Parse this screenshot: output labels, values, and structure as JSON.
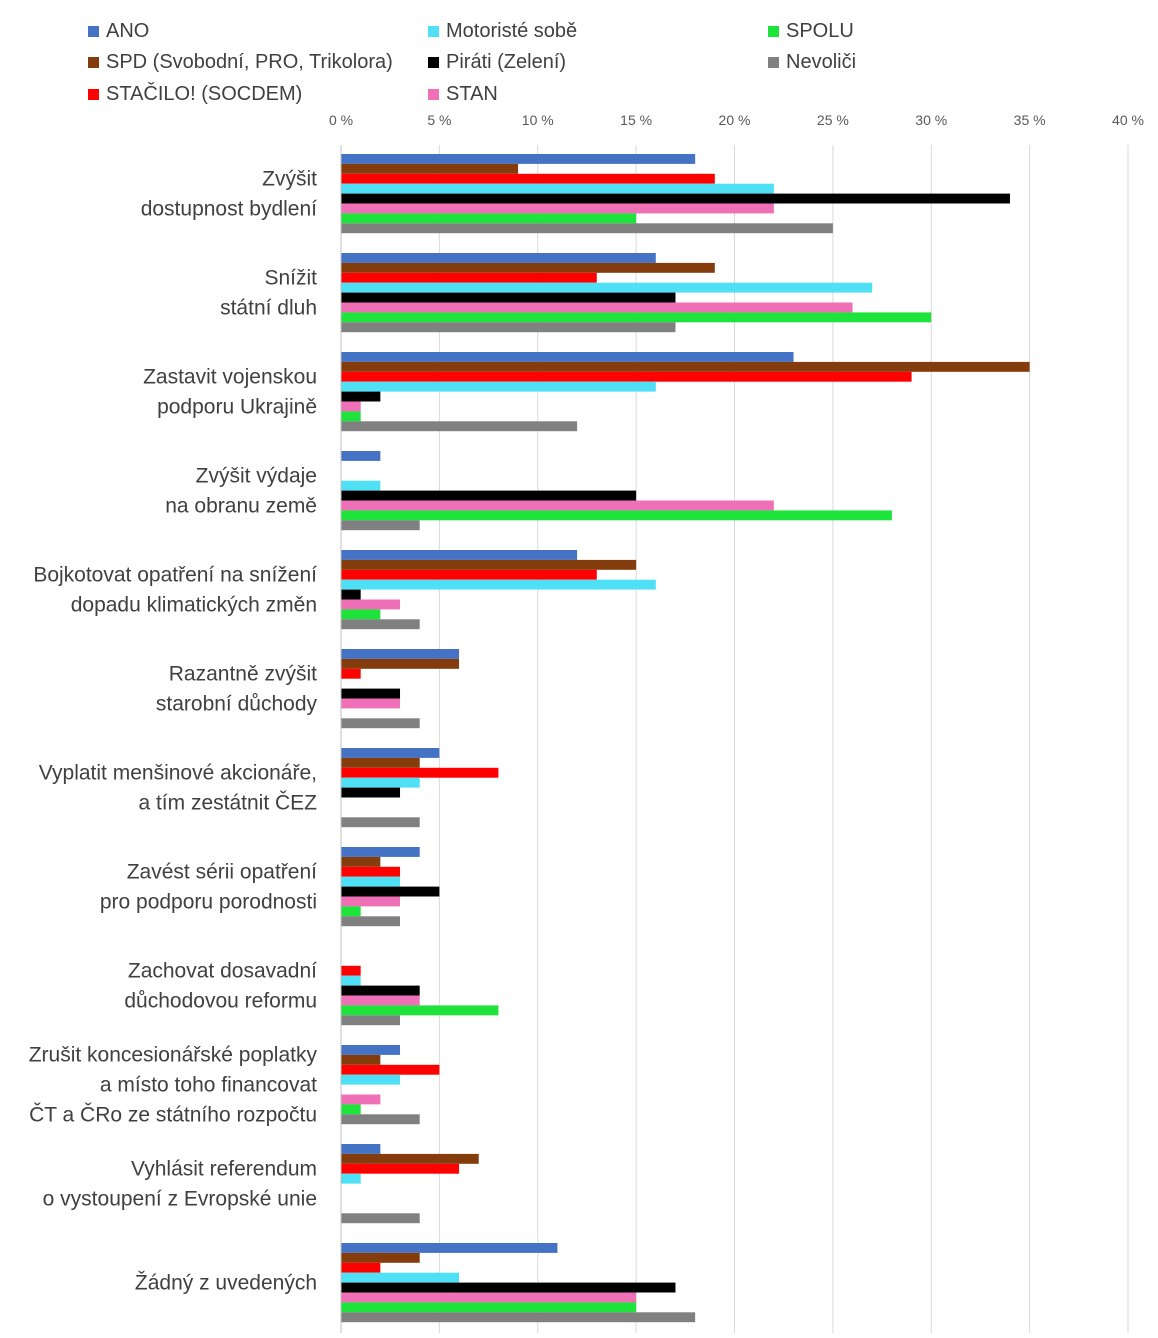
{
  "chart_data": {
    "type": "bar",
    "orientation": "horizontal",
    "title": "",
    "xlabel": "",
    "ylabel": "",
    "xlim": [
      0,
      40
    ],
    "tick_values": [
      0,
      5,
      10,
      15,
      20,
      25,
      30,
      35,
      40
    ],
    "tick_labels": [
      "0 %",
      "5 %",
      "10 %",
      "15 %",
      "20 %",
      "25 %",
      "30 %",
      "35 %",
      "40 %"
    ],
    "grid": true,
    "legend_position": "top",
    "categories": [
      {
        "lines": [
          "Zvýšit",
          "dostupnost bydlení"
        ]
      },
      {
        "lines": [
          "Snížit",
          "státní dluh"
        ]
      },
      {
        "lines": [
          "Zastavit vojenskou",
          "podporu Ukrajině"
        ]
      },
      {
        "lines": [
          "Zvýšit výdaje",
          "na obranu země"
        ]
      },
      {
        "lines": [
          "Bojkotovat opatření na snížení",
          "dopadu klimatických změn"
        ]
      },
      {
        "lines": [
          "Razantně zvýšit",
          "starobní důchody"
        ]
      },
      {
        "lines": [
          "Vyplatit menšinové akcionáře,",
          "a tím zestátnit ČEZ"
        ]
      },
      {
        "lines": [
          "Zavést sérii opatření",
          "pro podporu porodnosti"
        ]
      },
      {
        "lines": [
          "Zachovat dosavadní",
          "důchodovou reformu"
        ]
      },
      {
        "lines": [
          "Zrušit koncesionářské poplatky",
          "a místo toho financovat",
          "ČT a ČRo ze státního rozpočtu"
        ]
      },
      {
        "lines": [
          "Vyhlásit referendum",
          "o vystoupení z Evropské unie"
        ]
      },
      {
        "lines": [
          "Žádný z uvedených"
        ]
      }
    ],
    "series": [
      {
        "name": "ANO",
        "color": "#4472C4",
        "values": [
          18,
          16,
          23,
          2,
          12,
          6,
          5,
          4,
          0,
          3,
          2,
          11
        ]
      },
      {
        "name": "SPD (Svobodní, PRO, Trikolora)",
        "color": "#843C0C",
        "values": [
          9,
          19,
          35,
          0,
          15,
          6,
          4,
          2,
          0,
          2,
          7,
          4
        ]
      },
      {
        "name": "STAČILO! (SOCDEM)",
        "color": "#FF0000",
        "values": [
          19,
          13,
          29,
          0,
          13,
          1,
          8,
          3,
          1,
          5,
          6,
          2
        ]
      },
      {
        "name": "Motoristé sobě",
        "color": "#4FE0F5",
        "values": [
          22,
          27,
          16,
          2,
          16,
          0,
          4,
          3,
          1,
          3,
          1,
          6
        ]
      },
      {
        "name": "Piráti (Zelení)",
        "color": "#000000",
        "values": [
          34,
          17,
          2,
          15,
          1,
          3,
          3,
          5,
          4,
          0,
          0,
          17
        ]
      },
      {
        "name": "STAN",
        "color": "#F070B8",
        "values": [
          22,
          26,
          1,
          22,
          3,
          3,
          0,
          3,
          4,
          2,
          0,
          15
        ]
      },
      {
        "name": "SPOLU",
        "color": "#1DE33A",
        "values": [
          15,
          30,
          1,
          28,
          2,
          0,
          0,
          1,
          8,
          1,
          0,
          15
        ]
      },
      {
        "name": "Nevoliči",
        "color": "#808080",
        "values": [
          25,
          17,
          12,
          4,
          4,
          4,
          4,
          3,
          3,
          4,
          4,
          18
        ]
      }
    ]
  }
}
